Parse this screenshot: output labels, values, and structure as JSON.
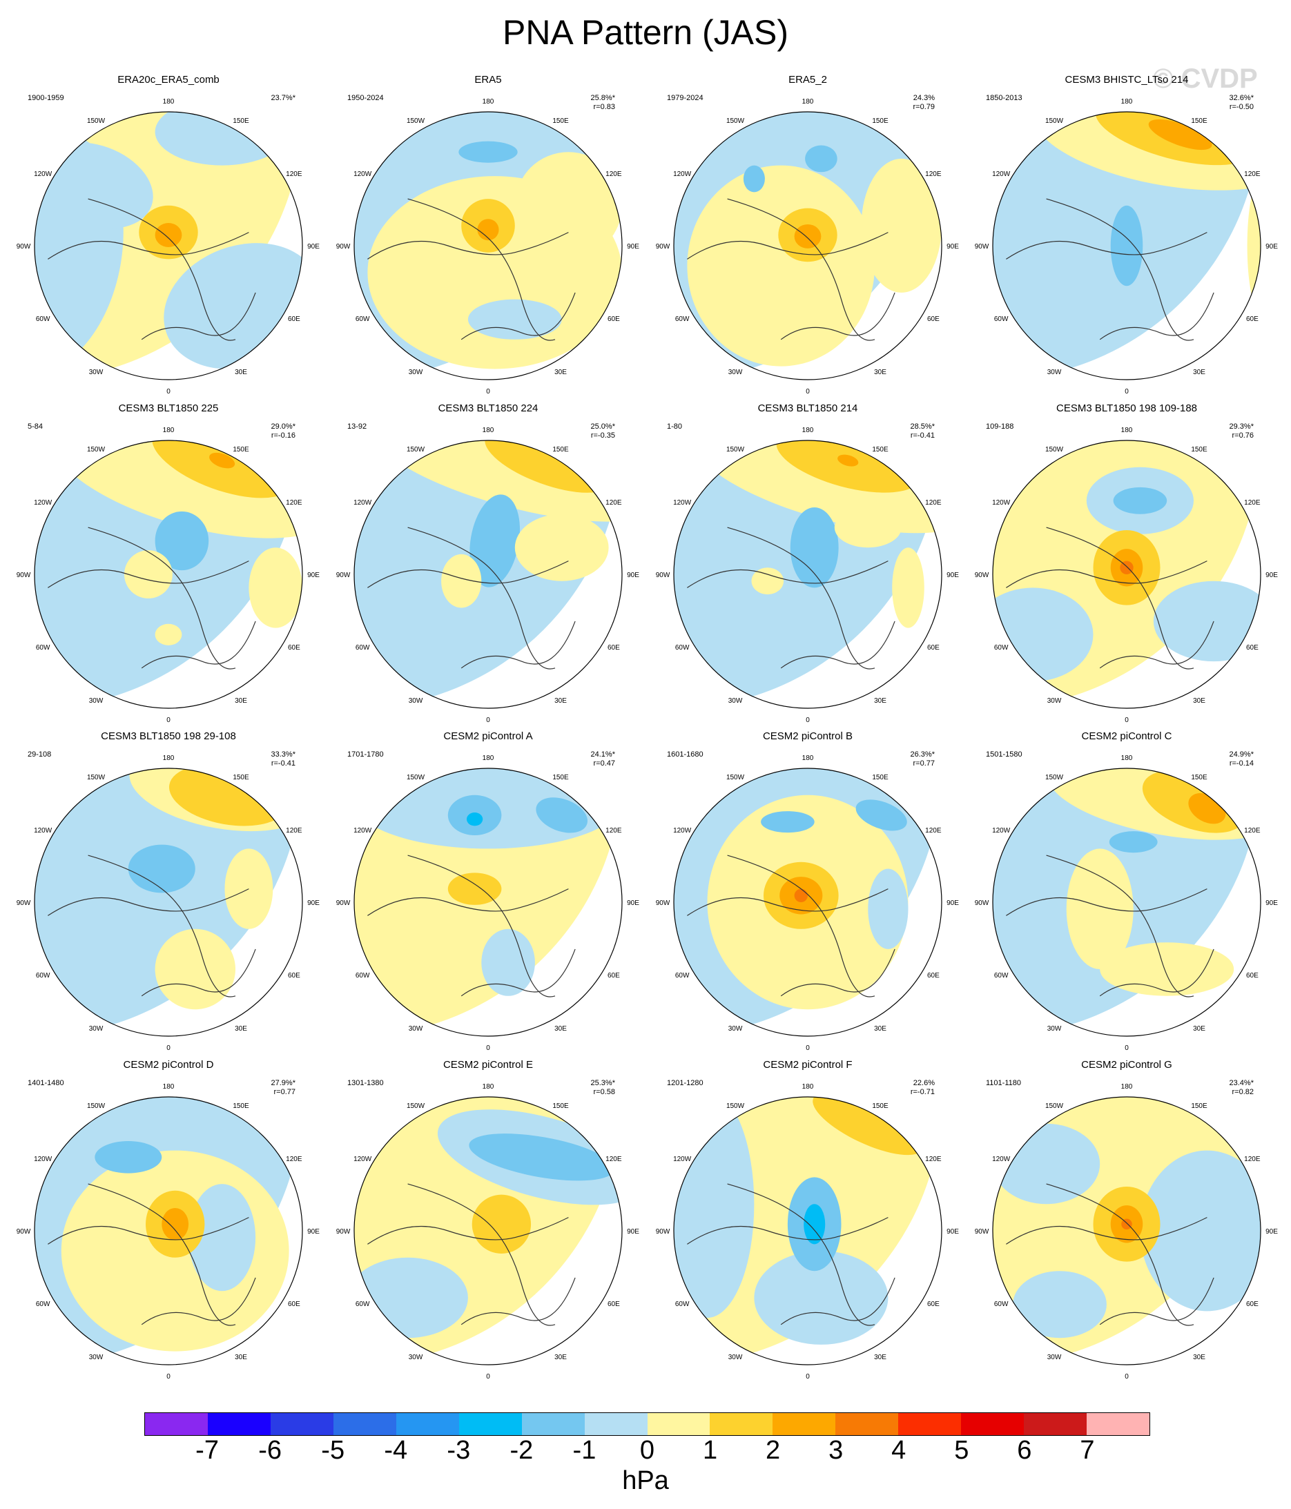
{
  "title": "PNA Pattern (JAS)",
  "watermark": "© CVDP",
  "units": "hPa",
  "colorbar": {
    "labels": [
      "-7",
      "-6",
      "-5",
      "-4",
      "-3",
      "-2",
      "-1",
      "0",
      "1",
      "2",
      "3",
      "4",
      "5",
      "6",
      "7"
    ],
    "colors": [
      "#8a28f0",
      "#1a00ff",
      "#2a3ce6",
      "#2c6ee8",
      "#2596f2",
      "#00bcf5",
      "#74c7f0",
      "#b5dff3",
      "#fff6a0",
      "#fdd22e",
      "#fda800",
      "#f77a05",
      "#fc2e00",
      "#e60000",
      "#cc1a1a",
      "#ffb3b3"
    ]
  },
  "longitude_labels": [
    "180",
    "150E",
    "120E",
    "90E",
    "60E",
    "30E",
    "0",
    "30W",
    "60W",
    "90W",
    "120W",
    "150W"
  ],
  "panels": [
    {
      "title": "ERA20c_ERA5_comb",
      "years": "1900-1959",
      "variance": "23.7%*",
      "corr": ""
    },
    {
      "title": "ERA5",
      "years": "1950-2024",
      "variance": "25.8%*",
      "corr": "r=0.83"
    },
    {
      "title": "ERA5_2",
      "years": "1979-2024",
      "variance": "24.3%",
      "corr": "r=0.79"
    },
    {
      "title": "CESM3 BHISTC_LTso 214",
      "years": "1850-2013",
      "variance": "32.6%*",
      "corr": "r=-0.50"
    },
    {
      "title": "CESM3 BLT1850 225",
      "years": "5-84",
      "variance": "29.0%*",
      "corr": "r=-0.16"
    },
    {
      "title": "CESM3 BLT1850 224",
      "years": "13-92",
      "variance": "25.0%*",
      "corr": "r=-0.35"
    },
    {
      "title": "CESM3 BLT1850 214",
      "years": "1-80",
      "variance": "28.5%*",
      "corr": "r=-0.41"
    },
    {
      "title": "CESM3 BLT1850 198 109-188",
      "years": "109-188",
      "variance": "29.3%*",
      "corr": "r=0.76"
    },
    {
      "title": "CESM3 BLT1850 198 29-108",
      "years": "29-108",
      "variance": "33.3%*",
      "corr": "r=-0.41"
    },
    {
      "title": "CESM2 piControl A",
      "years": "1701-1780",
      "variance": "24.1%*",
      "corr": "r=0.47"
    },
    {
      "title": "CESM2 piControl B",
      "years": "1601-1680",
      "variance": "26.3%*",
      "corr": "r=0.77"
    },
    {
      "title": "CESM2 piControl C",
      "years": "1501-1580",
      "variance": "24.9%*",
      "corr": "r=-0.14"
    },
    {
      "title": "CESM2 piControl D",
      "years": "1401-1480",
      "variance": "27.9%*",
      "corr": "r=0.77"
    },
    {
      "title": "CESM2 piControl E",
      "years": "1301-1380",
      "variance": "25.3%*",
      "corr": "r=0.58"
    },
    {
      "title": "CESM2 piControl F",
      "years": "1201-1280",
      "variance": "22.6%",
      "corr": "r=-0.71"
    },
    {
      "title": "CESM2 piControl G",
      "years": "1101-1180",
      "variance": "23.4%*",
      "corr": "r=0.82"
    }
  ]
}
